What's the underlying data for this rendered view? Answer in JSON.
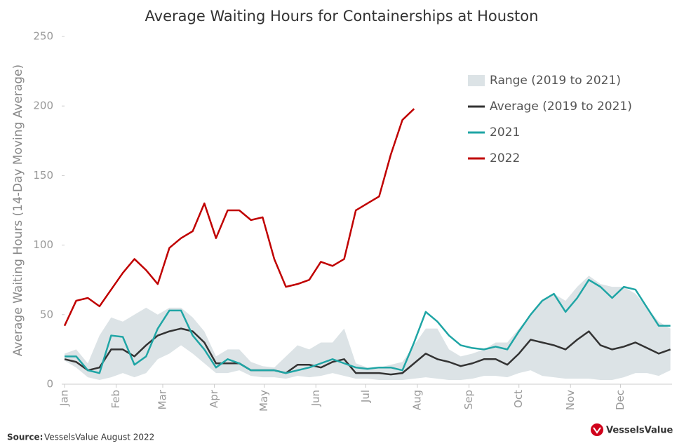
{
  "chart_data": {
    "type": "line",
    "title": "Average Waiting Hours for Containerships at Houston",
    "y_label": "Average Waiting Hours (14-Day Moving Average)",
    "source_label": "Source:",
    "source": "VesselsValue August 2022",
    "brand": "VesselsValue",
    "x": [
      1,
      8,
      15,
      22,
      29,
      36,
      43,
      50,
      57,
      64,
      71,
      78,
      85,
      92,
      99,
      106,
      113,
      120,
      127,
      134,
      141,
      148,
      155,
      162,
      169,
      176,
      183,
      190,
      197,
      204,
      211,
      218,
      225,
      232,
      239,
      246,
      253,
      260,
      267,
      274,
      281,
      288,
      295,
      302,
      309,
      316,
      323,
      330,
      337,
      344,
      351,
      358,
      365
    ],
    "xlim": [
      1,
      366
    ],
    "xticks": [
      {
        "value": 1,
        "label": "Jan"
      },
      {
        "value": 32,
        "label": "Feb"
      },
      {
        "value": 60,
        "label": "Mar"
      },
      {
        "value": 91,
        "label": "Apr"
      },
      {
        "value": 121,
        "label": "May"
      },
      {
        "value": 152,
        "label": "Jun"
      },
      {
        "value": 182,
        "label": "Jul"
      },
      {
        "value": 213,
        "label": "Aug"
      },
      {
        "value": 244,
        "label": "Sep"
      },
      {
        "value": 274,
        "label": "Oct"
      },
      {
        "value": 305,
        "label": "Nov"
      },
      {
        "value": 335,
        "label": "Dec"
      }
    ],
    "ylim": [
      0,
      250
    ],
    "yticks": [
      0,
      50,
      100,
      150,
      200,
      250
    ],
    "legend": "upper right",
    "range": {
      "name": "Range (2019 to 2021)",
      "color": "#dce3e6",
      "low": [
        17,
        12,
        5,
        3,
        5,
        8,
        5,
        8,
        18,
        22,
        28,
        22,
        15,
        8,
        8,
        10,
        6,
        5,
        5,
        4,
        6,
        5,
        6,
        8,
        6,
        4,
        4,
        3,
        3,
        3,
        4,
        5,
        4,
        3,
        3,
        4,
        6,
        6,
        5,
        8,
        10,
        6,
        5,
        4,
        4,
        4,
        3,
        3,
        5,
        8,
        8,
        6,
        10
      ],
      "high": [
        22,
        25,
        15,
        35,
        48,
        45,
        50,
        55,
        50,
        55,
        55,
        48,
        38,
        20,
        25,
        25,
        16,
        13,
        12,
        20,
        28,
        25,
        30,
        30,
        40,
        15,
        12,
        12,
        14,
        16,
        28,
        40,
        40,
        25,
        20,
        22,
        25,
        30,
        30,
        40,
        50,
        60,
        65,
        60,
        70,
        78,
        72,
        70,
        70,
        65,
        55,
        45,
        40
      ]
    },
    "series": [
      {
        "name": "Average (2019 to 2021)",
        "color": "#333333",
        "values": [
          18,
          16,
          10,
          12,
          25,
          25,
          20,
          28,
          35,
          38,
          40,
          38,
          30,
          15,
          15,
          15,
          10,
          10,
          10,
          8,
          14,
          14,
          12,
          16,
          18,
          8,
          8,
          8,
          7,
          8,
          15,
          22,
          18,
          16,
          13,
          15,
          18,
          18,
          14,
          22,
          32,
          30,
          28,
          25,
          32,
          38,
          28,
          25,
          27,
          30,
          26,
          22,
          25
        ]
      },
      {
        "name": "2021",
        "color": "#1fa5a5",
        "values": [
          20,
          20,
          10,
          8,
          35,
          34,
          14,
          20,
          40,
          53,
          53,
          35,
          25,
          12,
          18,
          15,
          10,
          10,
          10,
          8,
          10,
          12,
          15,
          18,
          15,
          12,
          11,
          12,
          12,
          10,
          30,
          52,
          45,
          35,
          28,
          26,
          25,
          27,
          25,
          38,
          50,
          60,
          65,
          52,
          62,
          75,
          70,
          62,
          70,
          68,
          55,
          42,
          42
        ]
      },
      {
        "name": "2022",
        "color": "#c00000",
        "values": [
          42,
          60,
          62,
          56,
          68,
          80,
          90,
          82,
          72,
          98,
          105,
          110,
          130,
          105,
          125,
          125,
          118,
          120,
          90,
          70,
          72,
          75,
          88,
          85,
          90,
          125,
          130,
          135,
          165,
          190,
          198,
          null,
          null,
          null,
          null,
          null,
          null,
          null,
          null,
          null,
          null,
          null,
          null,
          null,
          null,
          null,
          null,
          null,
          null,
          null,
          null,
          null,
          null
        ]
      }
    ]
  }
}
